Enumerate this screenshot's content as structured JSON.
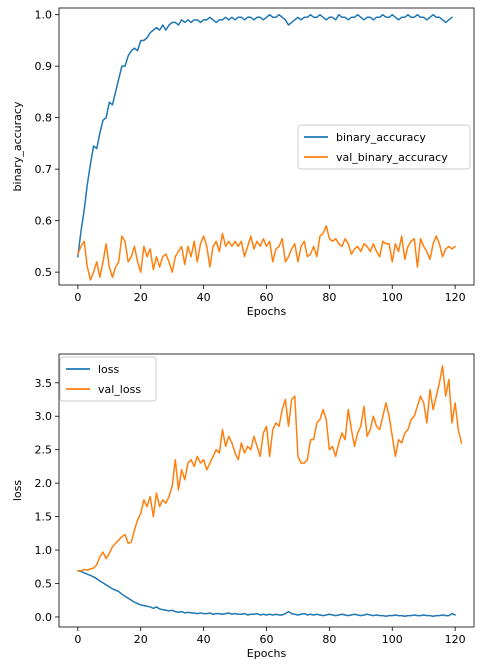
{
  "chart_data": [
    {
      "type": "line",
      "xlabel": "Epochs",
      "ylabel": "binary_accuracy",
      "xlim": [
        -6,
        126
      ],
      "ylim": [
        0.475,
        1.013
      ],
      "xticks": [
        "0",
        "20",
        "40",
        "60",
        "80",
        "100",
        "120"
      ],
      "yticks": [
        "0.5",
        "0.6",
        "0.7",
        "0.8",
        "0.9",
        "1.0"
      ],
      "legend": "center-right",
      "series": [
        {
          "name": "binary_accuracy",
          "color": "#1f77b4",
          "values": [
            0.53,
            0.58,
            0.62,
            0.67,
            0.71,
            0.745,
            0.74,
            0.77,
            0.795,
            0.8,
            0.83,
            0.825,
            0.85,
            0.875,
            0.9,
            0.9,
            0.92,
            0.93,
            0.935,
            0.93,
            0.95,
            0.95,
            0.955,
            0.965,
            0.97,
            0.975,
            0.97,
            0.98,
            0.97,
            0.98,
            0.985,
            0.985,
            0.98,
            0.99,
            0.985,
            0.99,
            0.985,
            0.99,
            0.99,
            0.985,
            0.99,
            0.99,
            0.995,
            0.99,
            0.985,
            0.99,
            0.99,
            0.995,
            0.99,
            0.995,
            0.99,
            0.995,
            0.995,
            0.99,
            0.995,
            0.995,
            0.99,
            0.995,
            0.995,
            0.99,
            0.995,
            1.0,
            0.995,
            0.995,
            1.0,
            0.995,
            0.99,
            0.98,
            0.985,
            0.99,
            0.995,
            0.99,
            0.995,
            0.995,
            1.0,
            0.995,
            0.995,
            1.0,
            0.995,
            0.99,
            0.995,
            0.995,
            0.99,
            1.0,
            0.995,
            0.995,
            0.99,
            0.995,
            0.995,
            1.0,
            0.995,
            0.99,
            0.995,
            0.995,
            0.99,
            0.995,
            0.995,
            1.0,
            0.995,
            0.995,
            1.0,
            0.995,
            0.99,
            0.995,
            0.995,
            1.0,
            0.995,
            0.995,
            1.0,
            0.995,
            0.995,
            0.99,
            0.995,
            1.0,
            0.995,
            0.995,
            0.99,
            0.985,
            0.99,
            0.995
          ]
        },
        {
          "name": "val_binary_accuracy",
          "color": "#ff7f0e",
          "values": [
            0.535,
            0.55,
            0.56,
            0.51,
            0.485,
            0.5,
            0.52,
            0.49,
            0.52,
            0.555,
            0.51,
            0.49,
            0.51,
            0.52,
            0.57,
            0.56,
            0.52,
            0.53,
            0.55,
            0.52,
            0.5,
            0.55,
            0.53,
            0.545,
            0.505,
            0.53,
            0.51,
            0.53,
            0.535,
            0.52,
            0.5,
            0.53,
            0.54,
            0.55,
            0.515,
            0.55,
            0.53,
            0.56,
            0.52,
            0.555,
            0.57,
            0.55,
            0.51,
            0.55,
            0.56,
            0.54,
            0.575,
            0.55,
            0.56,
            0.55,
            0.56,
            0.55,
            0.56,
            0.53,
            0.55,
            0.57,
            0.545,
            0.56,
            0.55,
            0.565,
            0.55,
            0.56,
            0.52,
            0.545,
            0.55,
            0.565,
            0.52,
            0.53,
            0.545,
            0.555,
            0.52,
            0.55,
            0.56,
            0.53,
            0.535,
            0.55,
            0.53,
            0.57,
            0.575,
            0.59,
            0.565,
            0.56,
            0.565,
            0.555,
            0.55,
            0.565,
            0.555,
            0.535,
            0.545,
            0.55,
            0.54,
            0.555,
            0.55,
            0.54,
            0.555,
            0.54,
            0.53,
            0.56,
            0.555,
            0.555,
            0.52,
            0.555,
            0.54,
            0.57,
            0.525,
            0.55,
            0.56,
            0.565,
            0.51,
            0.565,
            0.55,
            0.54,
            0.525,
            0.555,
            0.57,
            0.555,
            0.53,
            0.545,
            0.55,
            0.545,
            0.55
          ]
        }
      ]
    },
    {
      "type": "line",
      "xlabel": "Epochs",
      "ylabel": "loss",
      "xlim": [
        -6,
        126
      ],
      "ylim": [
        -0.15,
        3.93
      ],
      "xticks": [
        "0",
        "20",
        "40",
        "60",
        "80",
        "100",
        "120"
      ],
      "yticks": [
        "0.0",
        "0.5",
        "1.0",
        "1.5",
        "2.0",
        "2.5",
        "3.0",
        "3.5"
      ],
      "legend": "top-left",
      "series": [
        {
          "name": "loss",
          "color": "#1f77b4",
          "values": [
            0.69,
            0.68,
            0.66,
            0.64,
            0.62,
            0.6,
            0.57,
            0.54,
            0.51,
            0.48,
            0.45,
            0.42,
            0.4,
            0.38,
            0.34,
            0.31,
            0.28,
            0.25,
            0.22,
            0.2,
            0.18,
            0.17,
            0.16,
            0.15,
            0.13,
            0.15,
            0.12,
            0.11,
            0.1,
            0.09,
            0.1,
            0.08,
            0.07,
            0.08,
            0.06,
            0.07,
            0.06,
            0.06,
            0.05,
            0.06,
            0.05,
            0.05,
            0.06,
            0.04,
            0.05,
            0.05,
            0.04,
            0.05,
            0.06,
            0.04,
            0.05,
            0.04,
            0.04,
            0.05,
            0.03,
            0.04,
            0.04,
            0.05,
            0.03,
            0.04,
            0.03,
            0.04,
            0.03,
            0.04,
            0.03,
            0.03,
            0.05,
            0.08,
            0.05,
            0.04,
            0.03,
            0.04,
            0.05,
            0.03,
            0.04,
            0.03,
            0.04,
            0.03,
            0.02,
            0.03,
            0.04,
            0.03,
            0.02,
            0.03,
            0.04,
            0.03,
            0.02,
            0.03,
            0.04,
            0.03,
            0.02,
            0.03,
            0.04,
            0.03,
            0.02,
            0.03,
            0.02,
            0.02,
            0.01,
            0.02,
            0.02,
            0.03,
            0.02,
            0.02,
            0.01,
            0.02,
            0.02,
            0.03,
            0.02,
            0.02,
            0.03,
            0.02,
            0.02,
            0.01,
            0.02,
            0.02,
            0.03,
            0.02,
            0.02,
            0.05,
            0.03
          ]
        },
        {
          "name": "val_loss",
          "color": "#ff7f0e",
          "values": [
            0.69,
            0.69,
            0.71,
            0.7,
            0.72,
            0.73,
            0.78,
            0.9,
            0.97,
            0.87,
            0.95,
            1.05,
            1.1,
            1.15,
            1.2,
            1.23,
            1.1,
            1.12,
            1.3,
            1.45,
            1.55,
            1.75,
            1.65,
            1.8,
            1.5,
            1.85,
            1.65,
            1.75,
            1.7,
            1.8,
            1.95,
            2.35,
            1.9,
            2.2,
            2.05,
            2.3,
            2.35,
            2.25,
            2.4,
            2.3,
            2.35,
            2.2,
            2.3,
            2.4,
            2.5,
            2.45,
            2.8,
            2.55,
            2.7,
            2.6,
            2.45,
            2.35,
            2.6,
            2.45,
            2.55,
            2.5,
            2.7,
            2.55,
            2.4,
            2.75,
            2.85,
            2.4,
            2.8,
            2.9,
            2.85,
            3.1,
            3.25,
            2.85,
            3.25,
            3.3,
            2.4,
            2.3,
            2.3,
            2.35,
            2.65,
            2.65,
            2.9,
            2.95,
            3.1,
            2.95,
            2.5,
            2.55,
            2.4,
            2.6,
            2.75,
            2.65,
            3.1,
            2.8,
            2.55,
            2.75,
            2.85,
            3.15,
            2.7,
            2.8,
            3.0,
            2.85,
            2.8,
            3.0,
            3.2,
            3.0,
            2.7,
            2.4,
            2.65,
            2.6,
            2.75,
            2.8,
            2.95,
            3.0,
            3.15,
            3.3,
            3.2,
            2.9,
            3.4,
            3.1,
            3.3,
            3.5,
            3.75,
            3.3,
            3.55,
            2.9,
            3.2,
            2.8,
            2.6
          ]
        }
      ]
    }
  ]
}
